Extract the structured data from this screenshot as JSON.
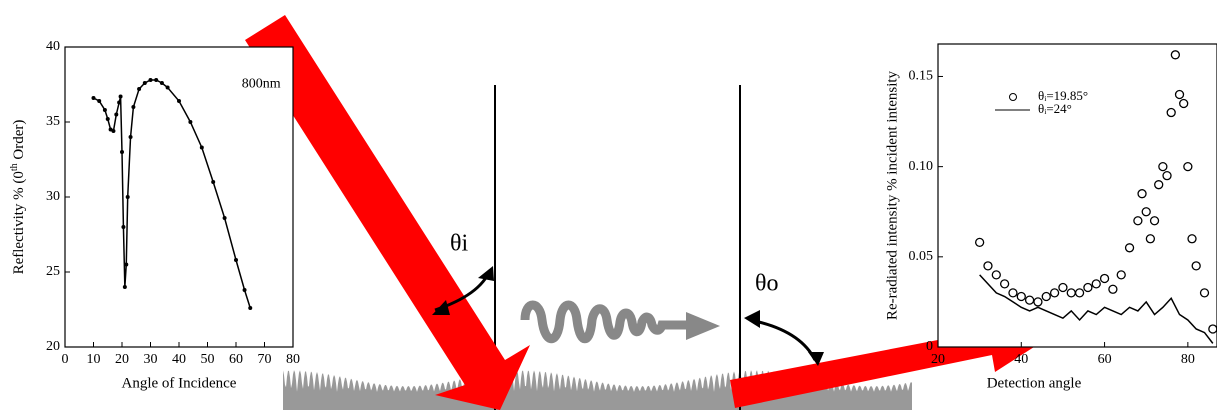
{
  "chart_data": [
    {
      "type": "line",
      "xlabel": "Angle of Incidence",
      "ylabel": [
        "Reflectivity % (0",
        "th",
        " Order)"
      ],
      "annotation": "800nm",
      "xlim": [
        0,
        80
      ],
      "xticks": [
        0,
        10,
        20,
        30,
        40,
        50,
        60,
        70,
        80
      ],
      "ylim": [
        20,
        40
      ],
      "yticks": [
        20,
        25,
        30,
        35,
        40
      ],
      "series": [
        {
          "color": "#000000",
          "marker": "dot",
          "connect": true,
          "x": [
            10,
            12,
            14,
            15,
            16,
            17,
            18,
            19,
            19.5,
            20,
            20.5,
            21,
            21.5,
            22,
            23,
            24,
            26,
            28,
            30,
            32,
            34,
            36,
            40,
            44,
            48,
            52,
            56,
            60,
            63,
            65
          ],
          "values": [
            36.6,
            36.4,
            35.8,
            35.2,
            34.5,
            34.4,
            35.5,
            36.3,
            36.7,
            33,
            28,
            24,
            25.5,
            30,
            34,
            36,
            37.2,
            37.6,
            37.8,
            37.8,
            37.6,
            37.3,
            36.4,
            35,
            33.3,
            31,
            28.6,
            25.8,
            23.8,
            22.6
          ]
        }
      ]
    },
    {
      "type": "line",
      "xlabel": "Detection angle",
      "ylabel": "Re-radiated intensity % incident intensity",
      "xlim": [
        20,
        87
      ],
      "xticks": [
        20,
        40,
        60,
        80
      ],
      "ylim": [
        0,
        0.168
      ],
      "yticks": [
        0,
        0.05,
        {
          "value": 0.1,
          "label": "0.10"
        },
        0.15
      ],
      "series": [
        {
          "name": "θᵢ=19.85°",
          "color": "#000000",
          "marker": "circle",
          "connect": false,
          "x": [
            30,
            32,
            34,
            36,
            38,
            40,
            42,
            44,
            46,
            48,
            50,
            52,
            54,
            56,
            58,
            60,
            62,
            64,
            66,
            68,
            69,
            70,
            71,
            72,
            73,
            74,
            75,
            76,
            77,
            78,
            79,
            80,
            81,
            82,
            84,
            86
          ],
          "values": [
            0.058,
            0.045,
            0.04,
            0.035,
            0.03,
            0.028,
            0.026,
            0.025,
            0.028,
            0.03,
            0.033,
            0.03,
            0.03,
            0.033,
            0.035,
            0.038,
            0.032,
            0.04,
            0.055,
            0.07,
            0.085,
            0.075,
            0.06,
            0.07,
            0.09,
            0.1,
            0.095,
            0.13,
            0.162,
            0.14,
            0.135,
            0.1,
            0.06,
            0.045,
            0.03,
            0.01
          ]
        },
        {
          "name": "θᵢ=24°",
          "color": "#000000",
          "marker": "none",
          "connect": true,
          "x": [
            30,
            32,
            34,
            36,
            38,
            40,
            42,
            44,
            46,
            48,
            50,
            52,
            54,
            56,
            58,
            60,
            62,
            64,
            66,
            68,
            70,
            72,
            74,
            76,
            78,
            80,
            82,
            84,
            86
          ],
          "values": [
            0.04,
            0.035,
            0.03,
            0.028,
            0.025,
            0.022,
            0.02,
            0.022,
            0.02,
            0.018,
            0.016,
            0.02,
            0.015,
            0.02,
            0.018,
            0.022,
            0.02,
            0.018,
            0.022,
            0.02,
            0.025,
            0.018,
            0.022,
            0.027,
            0.018,
            0.015,
            0.01,
            0.008,
            0.002
          ]
        }
      ]
    }
  ],
  "diagram": {
    "angle_in": "θi",
    "angle_out": "θo"
  }
}
